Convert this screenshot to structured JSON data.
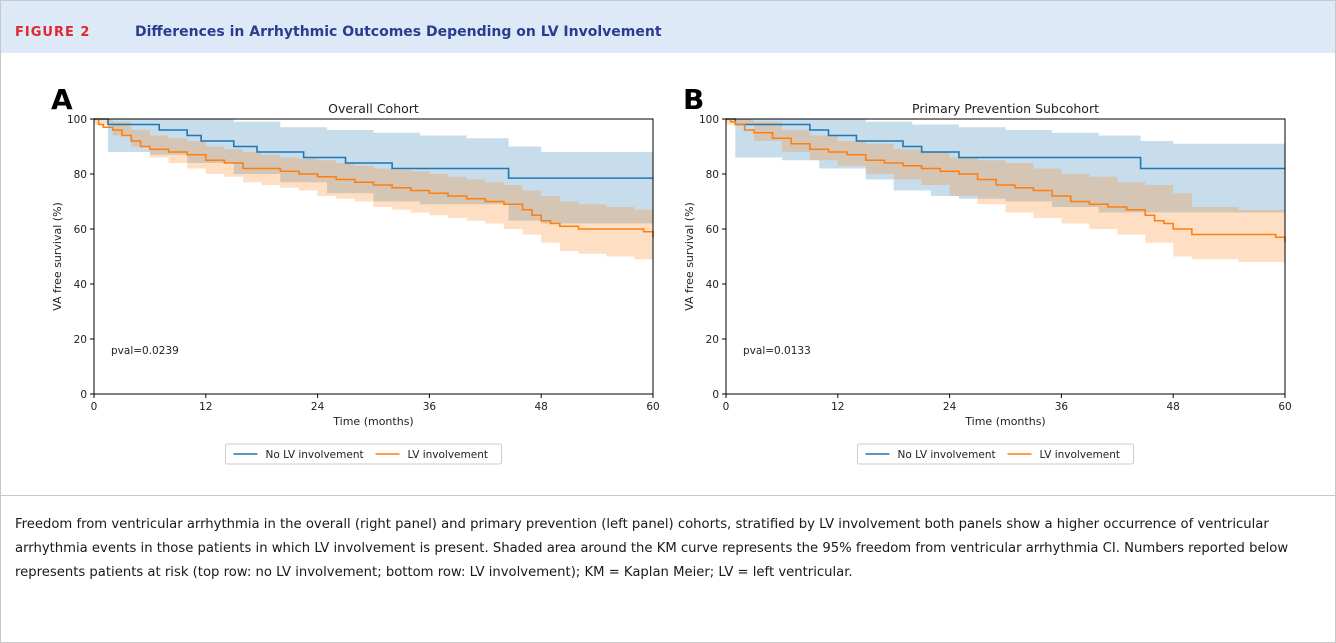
{
  "figure": {
    "label": "FIGURE 2",
    "title": "Differences in Arrhythmic Outcomes Depending on LV Involvement",
    "caption": "Freedom from ventricular arrhythmia in the overall (right panel) and primary prevention (left panel) cohorts, stratified by LV involvement both panels show a higher occurrence of ventricular arrhythmia events in those patients in which LV involvement is present. Shaded area around the KM curve represents the 95% freedom from ventricular arrhythmia CI. Numbers reported below represents patients at risk (top row: no LV involvement; bottom row: LV involvement); KM = Kaplan Meier; LV = left ventricular."
  },
  "colors": {
    "no_lv": "#1f77b4",
    "lv": "#ff7f0e",
    "title_blue": "#2a3c8f",
    "label_red": "#e0262e",
    "header_bg": "#dde9f6"
  },
  "chart_data": [
    {
      "type": "line",
      "panel": "A",
      "title": "Overall Cohort",
      "xlabel": "Time (months)",
      "ylabel": "VA free survival (%)",
      "xlim": [
        0,
        60
      ],
      "ylim": [
        0,
        100
      ],
      "xticks": [
        0,
        12,
        24,
        36,
        48,
        60
      ],
      "yticks": [
        0,
        20,
        40,
        60,
        80,
        100
      ],
      "annotation": "pval=0.0239",
      "legend": {
        "placement": "bottom-center",
        "entries": [
          "No LV involvement",
          "LV involvement"
        ]
      },
      "series": [
        {
          "name": "No LV involvement",
          "step": [
            [
              0,
              100
            ],
            [
              1.5,
              98
            ],
            [
              7,
              96
            ],
            [
              10,
              94
            ],
            [
              11.5,
              92
            ],
            [
              15,
              90
            ],
            [
              17.5,
              88
            ],
            [
              22.5,
              86
            ],
            [
              27,
              84
            ],
            [
              32,
              82
            ],
            [
              44.5,
              78.5
            ],
            [
              60,
              78.5
            ]
          ],
          "ci_upper": [
            [
              0,
              100
            ],
            [
              1.5,
              100
            ],
            [
              15,
              99
            ],
            [
              20,
              97
            ],
            [
              25,
              96
            ],
            [
              30,
              95
            ],
            [
              35,
              94
            ],
            [
              40,
              93
            ],
            [
              44.5,
              90
            ],
            [
              48,
              88
            ],
            [
              60,
              88
            ]
          ],
          "ci_lower": [
            [
              0,
              100
            ],
            [
              1.5,
              88
            ],
            [
              6,
              87
            ],
            [
              10,
              84
            ],
            [
              15,
              80
            ],
            [
              20,
              77
            ],
            [
              25,
              73
            ],
            [
              30,
              70
            ],
            [
              35,
              69
            ],
            [
              44.5,
              63
            ],
            [
              48,
              62
            ],
            [
              60,
              62
            ]
          ]
        },
        {
          "name": "LV involvement",
          "step": [
            [
              0,
              100
            ],
            [
              0.5,
              98
            ],
            [
              1,
              97
            ],
            [
              2,
              96
            ],
            [
              3,
              94
            ],
            [
              4,
              92
            ],
            [
              5,
              90
            ],
            [
              6,
              89
            ],
            [
              8,
              88
            ],
            [
              10,
              87
            ],
            [
              12,
              85
            ],
            [
              14,
              84
            ],
            [
              16,
              82
            ],
            [
              18,
              82
            ],
            [
              20,
              81
            ],
            [
              22,
              80
            ],
            [
              24,
              79
            ],
            [
              26,
              78
            ],
            [
              28,
              77
            ],
            [
              30,
              76
            ],
            [
              32,
              75
            ],
            [
              34,
              74
            ],
            [
              36,
              73
            ],
            [
              38,
              72
            ],
            [
              40,
              71
            ],
            [
              42,
              70
            ],
            [
              44,
              69
            ],
            [
              46,
              67
            ],
            [
              47,
              65
            ],
            [
              48,
              63
            ],
            [
              49,
              62
            ],
            [
              50,
              61
            ],
            [
              52,
              60
            ],
            [
              56,
              60
            ],
            [
              59,
              59
            ],
            [
              60,
              57
            ]
          ],
          "ci_upper": [
            [
              0,
              100
            ],
            [
              2,
              99
            ],
            [
              4,
              96
            ],
            [
              6,
              94
            ],
            [
              8,
              93
            ],
            [
              10,
              92
            ],
            [
              12,
              90
            ],
            [
              14,
              89
            ],
            [
              16,
              88
            ],
            [
              18,
              87
            ],
            [
              20,
              86
            ],
            [
              22,
              85.5
            ],
            [
              24,
              85
            ],
            [
              26,
              84
            ],
            [
              28,
              83
            ],
            [
              30,
              82
            ],
            [
              32,
              81.5
            ],
            [
              34,
              81
            ],
            [
              36,
              80
            ],
            [
              38,
              79
            ],
            [
              40,
              78
            ],
            [
              42,
              77
            ],
            [
              44,
              76
            ],
            [
              46,
              74
            ],
            [
              48,
              72
            ],
            [
              50,
              70
            ],
            [
              52,
              69
            ],
            [
              55,
              68
            ],
            [
              58,
              67
            ],
            [
              60,
              66
            ]
          ],
          "ci_lower": [
            [
              0,
              98
            ],
            [
              2,
              94
            ],
            [
              4,
              90
            ],
            [
              6,
              86
            ],
            [
              8,
              84
            ],
            [
              10,
              82
            ],
            [
              12,
              80
            ],
            [
              14,
              79
            ],
            [
              16,
              77
            ],
            [
              18,
              76
            ],
            [
              20,
              75
            ],
            [
              22,
              74
            ],
            [
              24,
              72
            ],
            [
              26,
              71
            ],
            [
              28,
              70
            ],
            [
              30,
              68
            ],
            [
              32,
              67
            ],
            [
              34,
              66
            ],
            [
              36,
              65
            ],
            [
              38,
              64
            ],
            [
              40,
              63
            ],
            [
              42,
              62
            ],
            [
              44,
              60
            ],
            [
              46,
              58
            ],
            [
              48,
              55
            ],
            [
              50,
              52
            ],
            [
              52,
              51
            ],
            [
              55,
              50
            ],
            [
              58,
              49
            ],
            [
              60,
              47
            ]
          ]
        }
      ]
    },
    {
      "type": "line",
      "panel": "B",
      "title": "Primary Prevention Subcohort",
      "xlabel": "Time (months)",
      "ylabel": "VA free survival (%)",
      "xlim": [
        0,
        60
      ],
      "ylim": [
        0,
        100
      ],
      "xticks": [
        0,
        12,
        24,
        36,
        48,
        60
      ],
      "yticks": [
        0,
        20,
        40,
        60,
        80,
        100
      ],
      "annotation": "pval=0.0133",
      "legend": {
        "placement": "bottom-center",
        "entries": [
          "No LV involvement",
          "LV involvement"
        ]
      },
      "series": [
        {
          "name": "No LV involvement",
          "step": [
            [
              0,
              100
            ],
            [
              1,
              98
            ],
            [
              9,
              96
            ],
            [
              11,
              94
            ],
            [
              14,
              92
            ],
            [
              19,
              90
            ],
            [
              21,
              88
            ],
            [
              25,
              86
            ],
            [
              44.5,
              82
            ],
            [
              60,
              82
            ]
          ],
          "ci_upper": [
            [
              0,
              100
            ],
            [
              1,
              100
            ],
            [
              15,
              99
            ],
            [
              20,
              98
            ],
            [
              25,
              97
            ],
            [
              30,
              96
            ],
            [
              35,
              95
            ],
            [
              40,
              94
            ],
            [
              44.5,
              92
            ],
            [
              48,
              91
            ],
            [
              60,
              91
            ]
          ],
          "ci_lower": [
            [
              0,
              100
            ],
            [
              1,
              86
            ],
            [
              6,
              85
            ],
            [
              10,
              82
            ],
            [
              15,
              78
            ],
            [
              18,
              74
            ],
            [
              22,
              72
            ],
            [
              25,
              71
            ],
            [
              30,
              70
            ],
            [
              35,
              68
            ],
            [
              40,
              66
            ],
            [
              44.5,
              66
            ],
            [
              48,
              66
            ],
            [
              60,
              65
            ]
          ]
        },
        {
          "name": "LV involvement",
          "step": [
            [
              0,
              100
            ],
            [
              0.5,
              99
            ],
            [
              1,
              98
            ],
            [
              2,
              96
            ],
            [
              3,
              95
            ],
            [
              5,
              93
            ],
            [
              7,
              91
            ],
            [
              9,
              89
            ],
            [
              11,
              88
            ],
            [
              13,
              87
            ],
            [
              15,
              85
            ],
            [
              17,
              84
            ],
            [
              19,
              83
            ],
            [
              21,
              82
            ],
            [
              23,
              81
            ],
            [
              25,
              80
            ],
            [
              27,
              78
            ],
            [
              29,
              76
            ],
            [
              31,
              75
            ],
            [
              33,
              74
            ],
            [
              35,
              72
            ],
            [
              37,
              70
            ],
            [
              39,
              69
            ],
            [
              41,
              68
            ],
            [
              43,
              67
            ],
            [
              45,
              65
            ],
            [
              46,
              63
            ],
            [
              47,
              62
            ],
            [
              48,
              60
            ],
            [
              50,
              58
            ],
            [
              55,
              58
            ],
            [
              59,
              57
            ],
            [
              60,
              55
            ]
          ],
          "ci_upper": [
            [
              0,
              100
            ],
            [
              3,
              99
            ],
            [
              6,
              96
            ],
            [
              9,
              94
            ],
            [
              12,
              92
            ],
            [
              15,
              91
            ],
            [
              18,
              89
            ],
            [
              21,
              88
            ],
            [
              24,
              86
            ],
            [
              27,
              85
            ],
            [
              30,
              84
            ],
            [
              33,
              82
            ],
            [
              36,
              80
            ],
            [
              39,
              79
            ],
            [
              42,
              77
            ],
            [
              45,
              76
            ],
            [
              48,
              73
            ],
            [
              50,
              68
            ],
            [
              55,
              67
            ],
            [
              60,
              66
            ]
          ],
          "ci_lower": [
            [
              0,
              98
            ],
            [
              3,
              92
            ],
            [
              6,
              88
            ],
            [
              9,
              85
            ],
            [
              12,
              83
            ],
            [
              15,
              80
            ],
            [
              18,
              78
            ],
            [
              21,
              76
            ],
            [
              24,
              72
            ],
            [
              27,
              69
            ],
            [
              30,
              66
            ],
            [
              33,
              64
            ],
            [
              36,
              62
            ],
            [
              39,
              60
            ],
            [
              42,
              58
            ],
            [
              45,
              55
            ],
            [
              48,
              50
            ],
            [
              50,
              49
            ],
            [
              55,
              48
            ],
            [
              60,
              45
            ]
          ]
        }
      ]
    }
  ]
}
